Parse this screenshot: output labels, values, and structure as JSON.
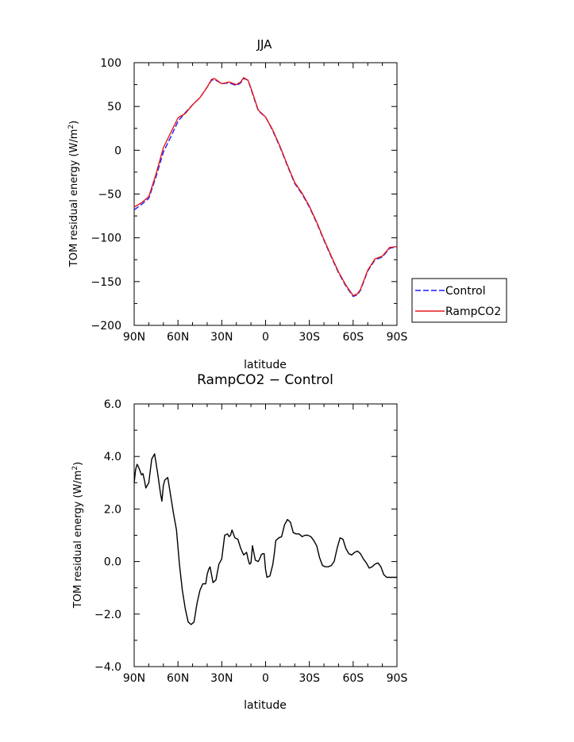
{
  "chart_data": [
    {
      "type": "line",
      "title": "JJA",
      "xlabel": "latitude",
      "ylabel_main": "TOM residual energy (W/m",
      "ylabel_sup": "2",
      "ylabel_end": ")",
      "xlim": [
        90,
        -90
      ],
      "ylim": [
        -200,
        100
      ],
      "xticks": [
        {
          "value": 90,
          "label": "90N"
        },
        {
          "value": 60,
          "label": "60N"
        },
        {
          "value": 30,
          "label": "30N"
        },
        {
          "value": 0,
          "label": "0"
        },
        {
          "value": -30,
          "label": "30S"
        },
        {
          "value": -60,
          "label": "60S"
        },
        {
          "value": -90,
          "label": "90S"
        }
      ],
      "yticks": [
        {
          "value": 100,
          "label": "100"
        },
        {
          "value": 50,
          "label": "50"
        },
        {
          "value": 0,
          "label": "0"
        },
        {
          "value": -50,
          "label": "−50"
        },
        {
          "value": -100,
          "label": "−100"
        },
        {
          "value": -150,
          "label": "−150"
        },
        {
          "value": -200,
          "label": "−200"
        }
      ],
      "legend_position": "right, outside plot",
      "series": [
        {
          "name": "Control",
          "color": "#1a1aff",
          "dash": "dashed",
          "x": [
            90,
            85,
            80,
            75,
            70,
            65,
            60,
            55,
            50,
            45,
            40,
            37,
            35,
            30,
            25,
            20,
            17,
            15,
            12,
            10,
            5,
            0,
            -5,
            -10,
            -15,
            -20,
            -25,
            -30,
            -35,
            -40,
            -45,
            -50,
            -55,
            -60,
            -63,
            -65,
            -70,
            -75,
            -80,
            -85,
            -90
          ],
          "y": [
            -68,
            -62,
            -55,
            -30,
            -2,
            15,
            33,
            43,
            52,
            60,
            72,
            80,
            81,
            76,
            77,
            74,
            77,
            82,
            80,
            70,
            45,
            38,
            22,
            3,
            -18,
            -38,
            -50,
            -65,
            -83,
            -103,
            -122,
            -140,
            -155,
            -167,
            -165,
            -160,
            -138,
            -125,
            -122,
            -112,
            -110
          ]
        },
        {
          "name": "RampCO2",
          "color": "#e51a1a",
          "dash": "solid",
          "x": [
            90,
            85,
            80,
            75,
            70,
            65,
            60,
            55,
            50,
            45,
            40,
            37,
            35,
            30,
            25,
            20,
            17,
            15,
            12,
            10,
            5,
            0,
            -5,
            -10,
            -15,
            -20,
            -25,
            -30,
            -35,
            -40,
            -45,
            -50,
            -55,
            -60,
            -63,
            -65,
            -70,
            -75,
            -80,
            -85,
            -90
          ],
          "y": [
            -65,
            -60,
            -53,
            -27,
            3,
            20,
            37,
            42,
            52,
            60,
            72,
            81,
            82,
            76,
            78,
            75,
            78,
            83,
            80,
            71,
            46,
            38,
            23,
            4,
            -17,
            -37,
            -49,
            -64,
            -82,
            -102,
            -121,
            -139,
            -154,
            -166,
            -164,
            -159,
            -137,
            -124,
            -121,
            -111,
            -110
          ]
        }
      ]
    },
    {
      "type": "line",
      "title": "RampCO2 − Control",
      "xlabel": "latitude",
      "ylabel_main": "TOM residual energy (W/m",
      "ylabel_sup": "2",
      "ylabel_end": ")",
      "xlim": [
        90,
        -90
      ],
      "ylim": [
        -4.0,
        6.0
      ],
      "xticks": [
        {
          "value": 90,
          "label": "90N"
        },
        {
          "value": 60,
          "label": "60N"
        },
        {
          "value": 30,
          "label": "30N"
        },
        {
          "value": 0,
          "label": "0"
        },
        {
          "value": -30,
          "label": "30S"
        },
        {
          "value": -60,
          "label": "60S"
        },
        {
          "value": -90,
          "label": "90S"
        }
      ],
      "yticks": [
        {
          "value": 6,
          "label": "6.0"
        },
        {
          "value": 4,
          "label": "4.0"
        },
        {
          "value": 2,
          "label": "2.0"
        },
        {
          "value": 0,
          "label": "0.0"
        },
        {
          "value": -2,
          "label": "−2.0"
        },
        {
          "value": -4,
          "label": "−4.0"
        }
      ],
      "series": [
        {
          "color": "#000000",
          "dash": "solid",
          "x": [
            90,
            89,
            88,
            87,
            85,
            84,
            83,
            82,
            80,
            78,
            76,
            74,
            72,
            71,
            70,
            69,
            67,
            65,
            63,
            61,
            59,
            57,
            55,
            53,
            51,
            49,
            47,
            45,
            43,
            41,
            40,
            39,
            38,
            36,
            34,
            32,
            30,
            28,
            26,
            25,
            24,
            23,
            21,
            19,
            17,
            15,
            13,
            12,
            11,
            10,
            9,
            7,
            5,
            4,
            3,
            2,
            1,
            0,
            -1,
            -3,
            -5,
            -6,
            -7,
            -9,
            -11,
            -13,
            -15,
            -17,
            -18,
            -19,
            -21,
            -23,
            -25,
            -27,
            -29,
            -31,
            -33,
            -35,
            -37,
            -39,
            -41,
            -43,
            -45,
            -47,
            -49,
            -51,
            -53,
            -55,
            -57,
            -59,
            -61,
            -63,
            -65,
            -67,
            -69,
            -71,
            -73,
            -75,
            -77,
            -79,
            -81,
            -83,
            -85,
            -87,
            -89,
            -90
          ],
          "y": [
            3.0,
            3.5,
            3.7,
            3.6,
            3.3,
            3.35,
            3.1,
            2.8,
            3.0,
            3.9,
            4.1,
            3.4,
            2.6,
            2.3,
            2.9,
            3.1,
            3.2,
            2.5,
            1.8,
            1.2,
            -0.1,
            -1.1,
            -1.8,
            -2.3,
            -2.4,
            -2.3,
            -1.6,
            -1.1,
            -0.85,
            -0.85,
            -0.5,
            -0.3,
            -0.2,
            -0.8,
            -0.7,
            -0.1,
            0.1,
            1.0,
            1.05,
            0.95,
            1.0,
            1.2,
            0.9,
            0.85,
            0.5,
            0.25,
            0.35,
            0.1,
            -0.1,
            -0.05,
            0.6,
            0.05,
            0.0,
            0.1,
            0.25,
            0.3,
            0.3,
            -0.3,
            -0.6,
            -0.55,
            -0.1,
            0.3,
            0.8,
            0.9,
            0.95,
            1.4,
            1.6,
            1.5,
            1.3,
            1.1,
            1.05,
            1.05,
            0.95,
            1.0,
            1.0,
            0.95,
            0.8,
            0.6,
            0.15,
            -0.15,
            -0.2,
            -0.2,
            -0.15,
            0.0,
            0.5,
            0.9,
            0.85,
            0.5,
            0.3,
            0.25,
            0.35,
            0.4,
            0.3,
            0.1,
            -0.05,
            -0.25,
            -0.2,
            -0.1,
            -0.05,
            -0.2,
            -0.5,
            -0.6,
            -0.6,
            -0.6,
            -0.6,
            -0.6
          ]
        }
      ]
    }
  ]
}
